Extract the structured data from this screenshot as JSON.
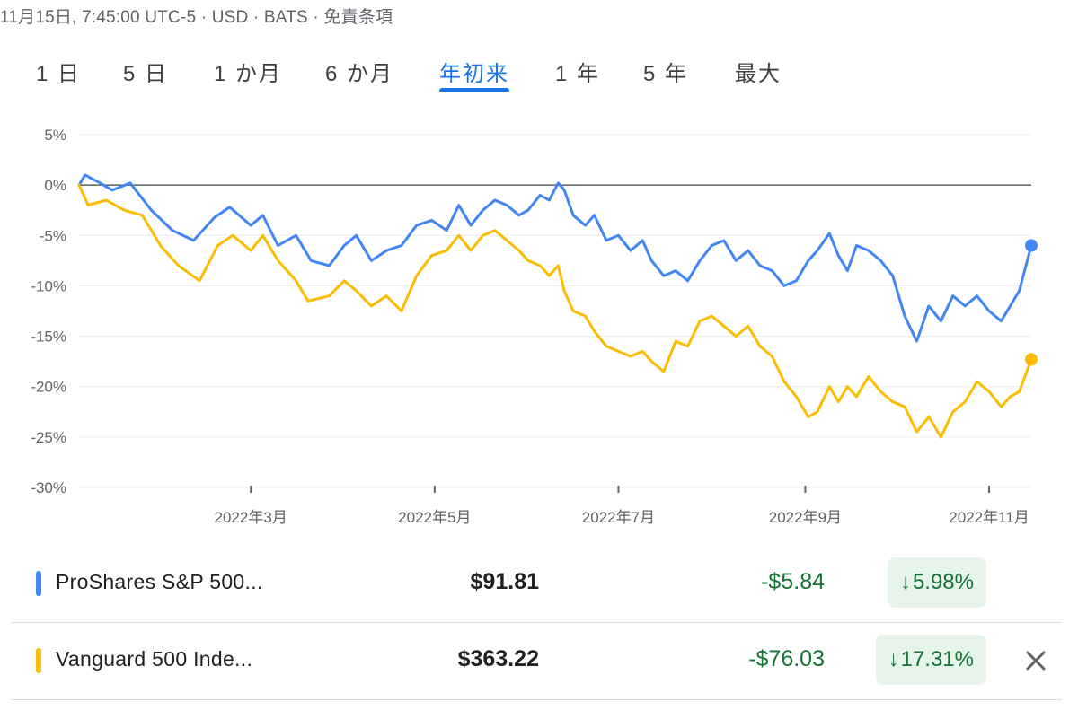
{
  "header": {
    "meta": "11月15日, 7:45:00 UTC-5 · USD · BATS · 免責条項"
  },
  "tabs": [
    {
      "label": "1 日",
      "active": false
    },
    {
      "label": "5 日",
      "active": false
    },
    {
      "label": "1 か月",
      "active": false
    },
    {
      "label": "6 か月",
      "active": false
    },
    {
      "label": "年初来",
      "active": true
    },
    {
      "label": "1 年",
      "active": false
    },
    {
      "label": "5 年",
      "active": false
    },
    {
      "label": "最大",
      "active": false
    }
  ],
  "chart_data": {
    "type": "line",
    "title": "",
    "xlabel": "",
    "ylabel": "",
    "ylim": [
      -30,
      5
    ],
    "xlim": [
      "2022-01-03",
      "2022-11-15"
    ],
    "yticks": [
      5,
      0,
      -5,
      -10,
      -15,
      -20,
      -25,
      -30
    ],
    "ytick_labels": [
      "5%",
      "0%",
      "-5%",
      "-10%",
      "-15%",
      "-20%",
      "-25%",
      "-30%"
    ],
    "xticks": [
      "2022-03-01",
      "2022-05-01",
      "2022-07-01",
      "2022-09-01",
      "2022-11-01"
    ],
    "xtick_labels": [
      "2022年3月",
      "2022年5月",
      "2022年7月",
      "2022年9月",
      "2022年11月"
    ],
    "grid": true,
    "legend": "none",
    "series": [
      {
        "name": "ProShares S&P 500...",
        "color": "#4285f4",
        "points": [
          [
            "2022-01-03",
            0
          ],
          [
            "2022-01-05",
            1
          ],
          [
            "2022-01-10",
            0.2
          ],
          [
            "2022-01-14",
            -0.5
          ],
          [
            "2022-01-20",
            0.2
          ],
          [
            "2022-01-27",
            -2.5
          ],
          [
            "2022-02-03",
            -4.5
          ],
          [
            "2022-02-10",
            -5.5
          ],
          [
            "2022-02-17",
            -3.2
          ],
          [
            "2022-02-22",
            -2.2
          ],
          [
            "2022-03-01",
            -4.0
          ],
          [
            "2022-03-05",
            -3
          ],
          [
            "2022-03-10",
            -6.0
          ],
          [
            "2022-03-16",
            -5.0
          ],
          [
            "2022-03-21",
            -7.5
          ],
          [
            "2022-03-27",
            -8.0
          ],
          [
            "2022-04-01",
            -6.0
          ],
          [
            "2022-04-05",
            -5.0
          ],
          [
            "2022-04-10",
            -7.5
          ],
          [
            "2022-04-15",
            -6.5
          ],
          [
            "2022-04-20",
            -6.0
          ],
          [
            "2022-04-25",
            -4.0
          ],
          [
            "2022-04-30",
            -3.5
          ],
          [
            "2022-05-05",
            -4.5
          ],
          [
            "2022-05-09",
            -2.0
          ],
          [
            "2022-05-13",
            -4.0
          ],
          [
            "2022-05-17",
            -2.5
          ],
          [
            "2022-05-21",
            -1.5
          ],
          [
            "2022-05-25",
            -2.0
          ],
          [
            "2022-05-29",
            -3.0
          ],
          [
            "2022-06-01",
            -2.5
          ],
          [
            "2022-06-05",
            -1.0
          ],
          [
            "2022-06-08",
            -1.5
          ],
          [
            "2022-06-11",
            0.2
          ],
          [
            "2022-06-13",
            -0.5
          ],
          [
            "2022-06-16",
            -3.0
          ],
          [
            "2022-06-20",
            -4.0
          ],
          [
            "2022-06-23",
            -3.0
          ],
          [
            "2022-06-27",
            -5.5
          ],
          [
            "2022-07-01",
            -5.0
          ],
          [
            "2022-07-05",
            -6.5
          ],
          [
            "2022-07-09",
            -5.5
          ],
          [
            "2022-07-12",
            -7.5
          ],
          [
            "2022-07-16",
            -9.0
          ],
          [
            "2022-07-20",
            -8.5
          ],
          [
            "2022-07-24",
            -9.5
          ],
          [
            "2022-07-28",
            -7.5
          ],
          [
            "2022-08-01",
            -6.0
          ],
          [
            "2022-08-05",
            -5.5
          ],
          [
            "2022-08-09",
            -7.5
          ],
          [
            "2022-08-13",
            -6.5
          ],
          [
            "2022-08-17",
            -8.0
          ],
          [
            "2022-08-21",
            -8.5
          ],
          [
            "2022-08-25",
            -10.0
          ],
          [
            "2022-08-29",
            -9.5
          ],
          [
            "2022-09-02",
            -7.5
          ],
          [
            "2022-09-05",
            -6.5
          ],
          [
            "2022-09-09",
            -4.8
          ],
          [
            "2022-09-12",
            -7.0
          ],
          [
            "2022-09-15",
            -8.5
          ],
          [
            "2022-09-18",
            -6.0
          ],
          [
            "2022-09-22",
            -6.5
          ],
          [
            "2022-09-26",
            -7.5
          ],
          [
            "2022-09-30",
            -9.0
          ],
          [
            "2022-10-04",
            -13.0
          ],
          [
            "2022-10-08",
            -15.5
          ],
          [
            "2022-10-12",
            -12.0
          ],
          [
            "2022-10-16",
            -13.5
          ],
          [
            "2022-10-20",
            -11.0
          ],
          [
            "2022-10-24",
            -12.0
          ],
          [
            "2022-10-28",
            -11.0
          ],
          [
            "2022-11-01",
            -12.5
          ],
          [
            "2022-11-05",
            -13.5
          ],
          [
            "2022-11-08",
            -12.0
          ],
          [
            "2022-11-11",
            -10.5
          ],
          [
            "2022-11-15",
            -6.0
          ]
        ],
        "end_value": -5.98
      },
      {
        "name": "Vanguard 500 Inde...",
        "color": "#fbbc04",
        "points": [
          [
            "2022-01-03",
            0
          ],
          [
            "2022-01-06",
            -2.0
          ],
          [
            "2022-01-12",
            -1.5
          ],
          [
            "2022-01-18",
            -2.5
          ],
          [
            "2022-01-24",
            -3.0
          ],
          [
            "2022-01-30",
            -6.0
          ],
          [
            "2022-02-05",
            -8.0
          ],
          [
            "2022-02-12",
            -9.5
          ],
          [
            "2022-02-18",
            -6.0
          ],
          [
            "2022-02-23",
            -5.0
          ],
          [
            "2022-03-01",
            -6.5
          ],
          [
            "2022-03-05",
            -5.0
          ],
          [
            "2022-03-10",
            -7.5
          ],
          [
            "2022-03-16",
            -9.5
          ],
          [
            "2022-03-20",
            -11.5
          ],
          [
            "2022-03-27",
            -11.0
          ],
          [
            "2022-04-01",
            -9.5
          ],
          [
            "2022-04-05",
            -10.5
          ],
          [
            "2022-04-10",
            -12.0
          ],
          [
            "2022-04-15",
            -11.0
          ],
          [
            "2022-04-20",
            -12.5
          ],
          [
            "2022-04-25",
            -9.0
          ],
          [
            "2022-04-30",
            -7.0
          ],
          [
            "2022-05-05",
            -6.5
          ],
          [
            "2022-05-09",
            -5.0
          ],
          [
            "2022-05-13",
            -6.5
          ],
          [
            "2022-05-17",
            -5.0
          ],
          [
            "2022-05-21",
            -4.5
          ],
          [
            "2022-05-25",
            -5.5
          ],
          [
            "2022-05-29",
            -6.5
          ],
          [
            "2022-06-01",
            -7.5
          ],
          [
            "2022-06-05",
            -8.0
          ],
          [
            "2022-06-08",
            -9.0
          ],
          [
            "2022-06-11",
            -8.0
          ],
          [
            "2022-06-13",
            -10.5
          ],
          [
            "2022-06-16",
            -12.5
          ],
          [
            "2022-06-20",
            -13.0
          ],
          [
            "2022-06-23",
            -14.5
          ],
          [
            "2022-06-27",
            -16.0
          ],
          [
            "2022-07-01",
            -16.5
          ],
          [
            "2022-07-05",
            -17.0
          ],
          [
            "2022-07-09",
            -16.5
          ],
          [
            "2022-07-12",
            -17.5
          ],
          [
            "2022-07-16",
            -18.5
          ],
          [
            "2022-07-20",
            -15.5
          ],
          [
            "2022-07-24",
            -16.0
          ],
          [
            "2022-07-28",
            -13.5
          ],
          [
            "2022-08-01",
            -13.0
          ],
          [
            "2022-08-05",
            -14.0
          ],
          [
            "2022-08-09",
            -15.0
          ],
          [
            "2022-08-13",
            -14.0
          ],
          [
            "2022-08-17",
            -16.0
          ],
          [
            "2022-08-21",
            -17.0
          ],
          [
            "2022-08-25",
            -19.5
          ],
          [
            "2022-08-29",
            -21.0
          ],
          [
            "2022-09-02",
            -23.0
          ],
          [
            "2022-09-05",
            -22.5
          ],
          [
            "2022-09-09",
            -20.0
          ],
          [
            "2022-09-12",
            -21.5
          ],
          [
            "2022-09-15",
            -20.0
          ],
          [
            "2022-09-18",
            -21.0
          ],
          [
            "2022-09-22",
            -19.0
          ],
          [
            "2022-09-26",
            -20.5
          ],
          [
            "2022-09-30",
            -21.5
          ],
          [
            "2022-10-04",
            -22.0
          ],
          [
            "2022-10-08",
            -24.5
          ],
          [
            "2022-10-12",
            -23.0
          ],
          [
            "2022-10-16",
            -25.0
          ],
          [
            "2022-10-20",
            -22.5
          ],
          [
            "2022-10-24",
            -21.5
          ],
          [
            "2022-10-28",
            -19.5
          ],
          [
            "2022-11-01",
            -20.5
          ],
          [
            "2022-11-05",
            -22.0
          ],
          [
            "2022-11-08",
            -21.0
          ],
          [
            "2022-11-11",
            -20.5
          ],
          [
            "2022-11-15",
            -17.3
          ]
        ],
        "end_value": -17.31
      }
    ]
  },
  "comparison": [
    {
      "name": "ProShares S&P 500...",
      "color": "#4285f4",
      "price": "$91.81",
      "change": "-$5.84",
      "pct_arrow": "↓",
      "pct": "5.98%",
      "removable": false
    },
    {
      "name": "Vanguard 500 Inde...",
      "color": "#fbbc04",
      "price": "$363.22",
      "change": "-$76.03",
      "pct_arrow": "↓",
      "pct": "17.31%",
      "removable": true
    }
  ]
}
